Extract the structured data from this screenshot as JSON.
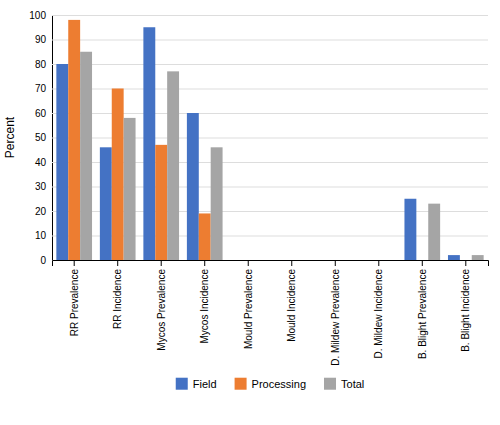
{
  "chart_data": {
    "type": "bar",
    "categories": [
      "RR Prevalence",
      "RR Incidence",
      "Mycos Prevalence",
      "Mycos Incidence",
      "Mould Prevalence",
      "Mould Incidence",
      "D. Mildew Prevalence",
      "D. Mildew Incidence",
      "B. Blight Prevalence",
      "B. Blight Incidence"
    ],
    "series": [
      {
        "name": "Field",
        "color": "#4472C4",
        "values": [
          80,
          46,
          95,
          60,
          0,
          0,
          0,
          0,
          25,
          2
        ]
      },
      {
        "name": "Processing",
        "color": "#ED7D31",
        "values": [
          98,
          70,
          47,
          19,
          0,
          0,
          0,
          0,
          0,
          0
        ]
      },
      {
        "name": "Total",
        "color": "#A5A5A5",
        "values": [
          85,
          58,
          77,
          46,
          0,
          0,
          0,
          0,
          23,
          2
        ]
      }
    ],
    "ylabel": "Percent",
    "ylim": [
      0,
      100
    ],
    "yticks": [
      0,
      10,
      20,
      30,
      40,
      50,
      60,
      70,
      80,
      90,
      100
    ],
    "grid": true,
    "legend": "bottom"
  }
}
